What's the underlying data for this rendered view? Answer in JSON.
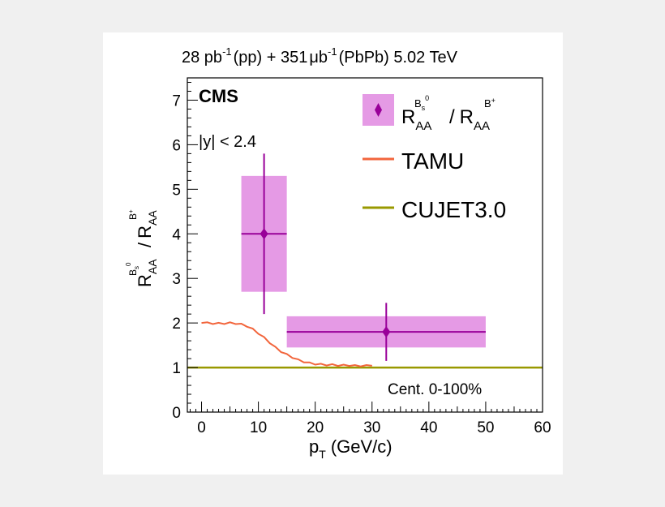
{
  "chart_data": {
    "type": "scatter",
    "header": {
      "pp_lumi": "28 pb",
      "pp_lumi_exp": "-1",
      "pp_label": "(pp) + 351",
      "pb_unit": "μb",
      "pb_exp": "-1",
      "pb_label": "(PbPb) 5.02 TeV"
    },
    "experiment": "CMS",
    "rapidity_cut": "|y| < 2.4",
    "centrality": "Cent. 0-100%",
    "ylabel": {
      "R1": "R",
      "R1_sub": "AA",
      "R1_sup_base": "B",
      "R1_sup_sub": "s",
      "R1_sup_sup": "0",
      "slash": "/",
      "R2": "R",
      "R2_sub": "AA",
      "R2_sup": "B",
      "R2_sup_sup": "+"
    },
    "xlabel": {
      "base": "p",
      "sub": "T",
      "unit": "(GeV/c)"
    },
    "xlim": [
      -2.5,
      60
    ],
    "ylim": [
      0,
      7.5
    ],
    "x_ticks": [
      "0",
      "10",
      "20",
      "30",
      "40",
      "50",
      "60"
    ],
    "y_ticks": [
      "0",
      "1",
      "2",
      "3",
      "4",
      "5",
      "6",
      "7"
    ],
    "legend": {
      "position": "top-right",
      "entries": [
        {
          "kind": "data",
          "R1": "R",
          "R1_sub": "AA",
          "R1_sup_base": "B",
          "R1_sup_sub": "s",
          "R1_sup_sup": "0",
          "slash": "/",
          "R2": "R",
          "R2_sub": "AA",
          "R2_sup": "B",
          "R2_sup_sup": "+"
        },
        {
          "kind": "line",
          "label": "TAMU"
        },
        {
          "kind": "line",
          "label": "CUJET3.0"
        }
      ]
    },
    "data_points": [
      {
        "x": 11,
        "y": 4.0,
        "x_low": 7,
        "x_high": 15,
        "stat_low": 2.2,
        "stat_high": 5.8,
        "syst_low": 2.7,
        "syst_high": 5.3
      },
      {
        "x": 32.5,
        "y": 1.8,
        "x_low": 15,
        "x_high": 50,
        "stat_low": 1.15,
        "stat_high": 2.45,
        "syst_low": 1.45,
        "syst_high": 2.15
      }
    ],
    "tamu": {
      "x": [
        0,
        1,
        2,
        3,
        4,
        5,
        6,
        7,
        8,
        9,
        10,
        11,
        12,
        13,
        14,
        15,
        16,
        17,
        18,
        19,
        20,
        21,
        22,
        23,
        24,
        25,
        26,
        27,
        28,
        29,
        30
      ],
      "y": [
        2.0,
        2.0,
        1.99,
        1.99,
        1.99,
        2.0,
        1.99,
        1.97,
        1.93,
        1.86,
        1.77,
        1.67,
        1.56,
        1.45,
        1.36,
        1.29,
        1.23,
        1.17,
        1.13,
        1.1,
        1.08,
        1.07,
        1.06,
        1.06,
        1.05,
        1.05,
        1.05,
        1.04,
        1.04,
        1.04,
        1.04
      ]
    },
    "cujet": {
      "y": 1.0
    },
    "colors": {
      "data": "#990099",
      "syst_box": "#e59ae5",
      "tamu": "#f2653c",
      "cujet": "#999900",
      "axis": "#000000"
    }
  }
}
